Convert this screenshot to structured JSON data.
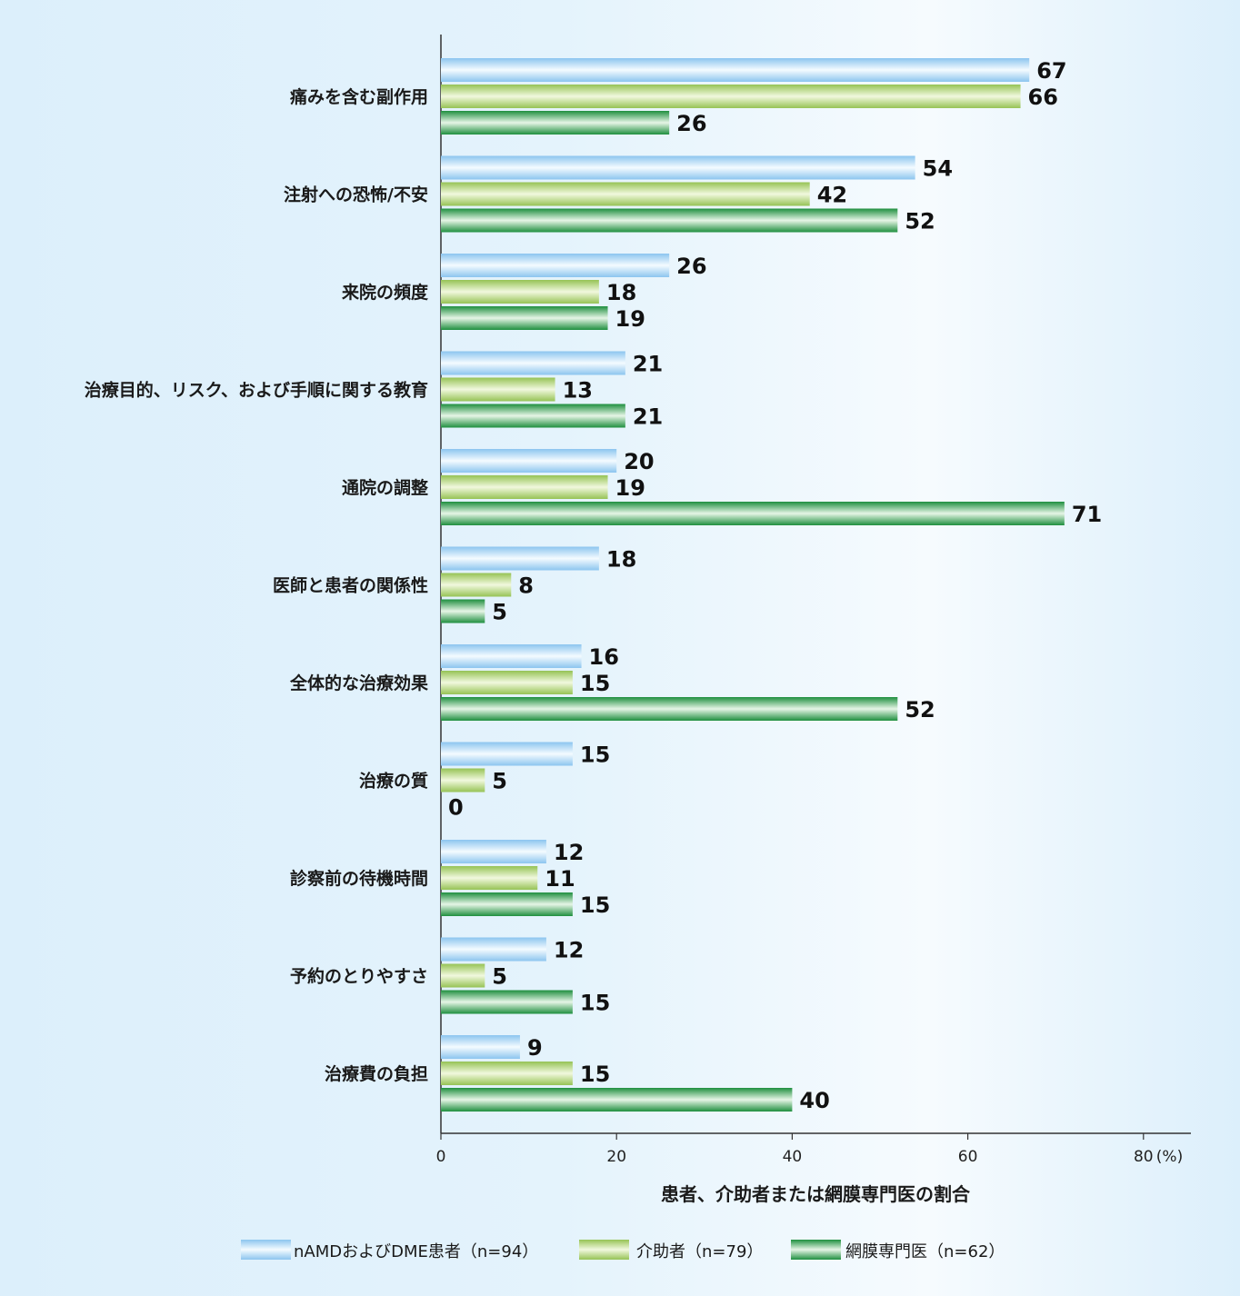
{
  "chart_data": {
    "type": "bar",
    "orientation": "horizontal",
    "categories": [
      "痛みを含む副作用",
      "注射への恐怖/不安",
      "来院の頻度",
      "治療目的、リスク、および手順に関する教育",
      "通院の調整",
      "医師と患者の関係性",
      "全体的な治療効果",
      "治療の質",
      "診察前の待機時間",
      "予約のとりやすさ",
      "治療費の負担"
    ],
    "series": [
      {
        "name": "nAMDおよびDME患者（n=94）",
        "color": "#a9d5f3",
        "values": [
          67,
          54,
          26,
          21,
          20,
          18,
          16,
          15,
          12,
          12,
          9
        ]
      },
      {
        "name": "介助者（n=79）",
        "color": "#a8cf6e",
        "values": [
          66,
          42,
          18,
          13,
          19,
          8,
          15,
          5,
          11,
          5,
          15
        ]
      },
      {
        "name": "網膜専門医（n=62）",
        "color": "#2f9e4a",
        "values": [
          26,
          52,
          19,
          21,
          71,
          5,
          52,
          0,
          15,
          15,
          40
        ]
      }
    ],
    "x_ticks": [
      "0",
      "20",
      "40",
      "60",
      "80"
    ],
    "unit": "(%)",
    "xlim": [
      0,
      80
    ],
    "xlabel": "患者、介助者または網膜専門医の割合",
    "legend_position": "bottom",
    "grid": false
  }
}
